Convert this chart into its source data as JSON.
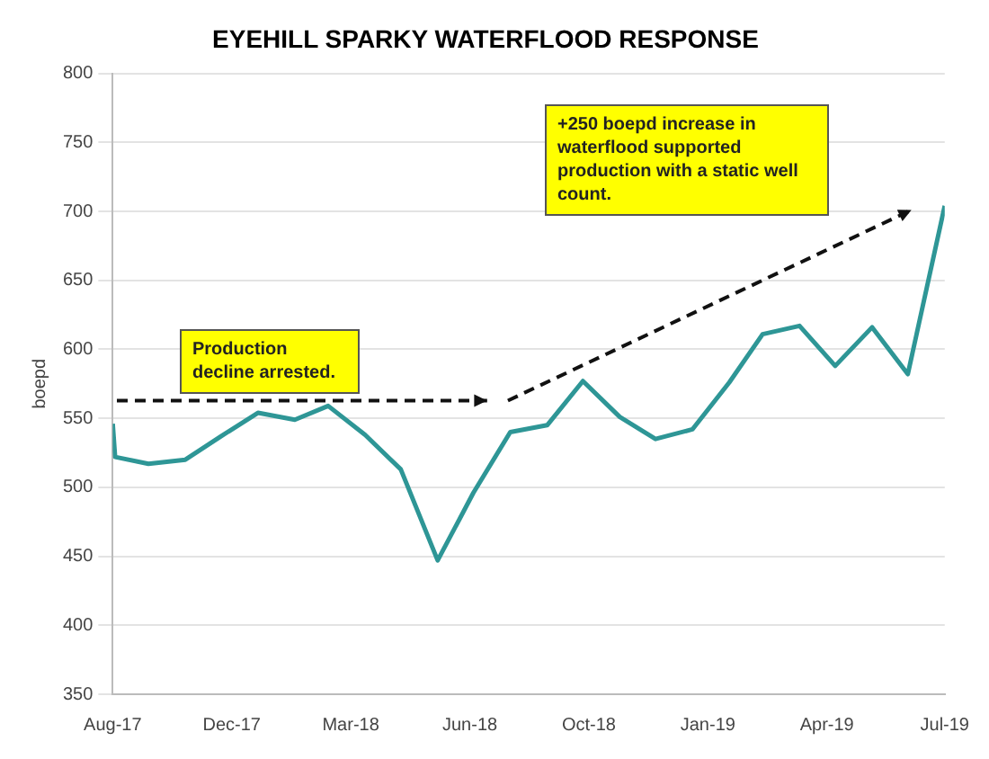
{
  "chart_data": {
    "type": "line",
    "title": "EYEHILL SPARKY WATERFLOOD RESPONSE",
    "ylabel": "boepd",
    "x": [
      "2017-08-31",
      "2017-09-02",
      "2017-09-30",
      "2017-10-31",
      "2017-11-30",
      "2017-12-31",
      "2018-01-31",
      "2018-02-28",
      "2018-03-31",
      "2018-04-30",
      "2018-05-31",
      "2018-06-30",
      "2018-07-31",
      "2018-08-31",
      "2018-09-30",
      "2018-10-31",
      "2018-11-30",
      "2018-12-31",
      "2019-01-31",
      "2019-02-28",
      "2019-03-31",
      "2019-04-30",
      "2019-05-31",
      "2019-06-30",
      "2019-07-31"
    ],
    "series": [
      {
        "color": "#2e9696",
        "values": [
          546,
          522,
          517,
          520,
          537,
          554,
          549,
          559,
          538,
          513,
          447,
          496,
          540,
          545,
          577,
          551,
          535,
          542,
          576,
          611,
          617,
          588,
          616,
          582,
          704
        ]
      }
    ],
    "xlim": [
      "2017-08-31",
      "2019-07-31"
    ],
    "xticks": [
      {
        "value": "2017-08-31",
        "label": "Aug-17"
      },
      {
        "value": "2017-12-09",
        "label": "Dec-17"
      },
      {
        "value": "2018-03-19",
        "label": "Mar-18"
      },
      {
        "value": "2018-06-27",
        "label": "Jun-18"
      },
      {
        "value": "2018-10-05",
        "label": "Oct-18"
      },
      {
        "value": "2019-01-13",
        "label": "Jan-19"
      },
      {
        "value": "2019-04-23",
        "label": "Apr-19"
      },
      {
        "value": "2019-07-31",
        "label": "Jul-19"
      }
    ],
    "ylim": [
      350,
      800
    ],
    "yticks": [
      350,
      400,
      450,
      500,
      550,
      600,
      650,
      700,
      750,
      800
    ],
    "grid": "y",
    "marker": "none",
    "line_style": "solid",
    "legend": false,
    "annotations": [
      "Production decline arrested.",
      "+250 boepd increase in waterflood supported production with a static well count."
    ]
  }
}
